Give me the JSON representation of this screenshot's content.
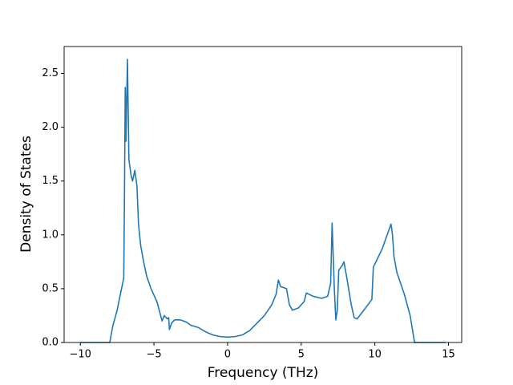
{
  "chart_data": {
    "type": "line",
    "xlabel": "Frequency (THz)",
    "ylabel": "Density of States",
    "xlim": [
      -11.1,
      15.9
    ],
    "ylim": [
      0,
      2.75
    ],
    "xticks": [
      {
        "value": -10,
        "label": "−10"
      },
      {
        "value": -5,
        "label": "−5"
      },
      0,
      5,
      10,
      15
    ],
    "yticks": [
      {
        "value": 0,
        "label": "0.0"
      },
      0.5,
      {
        "value": 1,
        "label": "1.0"
      },
      1.5,
      {
        "value": 2,
        "label": "2.0"
      },
      2.5
    ],
    "color": "#1f77b4",
    "x": [
      -10,
      -8,
      -7.8,
      -7.5,
      -7.2,
      -7.05,
      -7.0,
      -6.95,
      -6.9,
      -6.8,
      -6.7,
      -6.55,
      -6.45,
      -6.3,
      -6.15,
      -6.05,
      -5.9,
      -5.7,
      -5.5,
      -5.2,
      -4.8,
      -4.6,
      -4.45,
      -4.3,
      -4.1,
      -4.0,
      -3.95,
      -3.8,
      -3.6,
      -3.2,
      -2.8,
      -2.5,
      -2,
      -1.5,
      -1,
      -0.5,
      0,
      0.5,
      1,
      1.5,
      2,
      2.5,
      3,
      3.3,
      3.45,
      3.6,
      4,
      4.2,
      4.4,
      4.8,
      5.2,
      5.35,
      5.8,
      6.4,
      6.8,
      7.0,
      7.1,
      7.25,
      7.35,
      7.45,
      7.55,
      7.8,
      7.9,
      8.1,
      8.4,
      8.6,
      8.8,
      9.2,
      9.8,
      9.9,
      10.5,
      11.1,
      11.2,
      11.3,
      11.5,
      12,
      12.4,
      12.7,
      13,
      14.8
    ],
    "values": [
      0,
      0,
      0.15,
      0.3,
      0.5,
      0.6,
      1.4,
      2.37,
      1.87,
      2.63,
      1.7,
      1.55,
      1.5,
      1.6,
      1.45,
      1.1,
      0.9,
      0.75,
      0.62,
      0.5,
      0.38,
      0.28,
      0.2,
      0.25,
      0.22,
      0.23,
      0.12,
      0.18,
      0.21,
      0.21,
      0.19,
      0.16,
      0.14,
      0.1,
      0.07,
      0.055,
      0.05,
      0.055,
      0.07,
      0.11,
      0.18,
      0.25,
      0.35,
      0.45,
      0.58,
      0.52,
      0.5,
      0.35,
      0.3,
      0.32,
      0.38,
      0.46,
      0.43,
      0.41,
      0.43,
      0.55,
      1.11,
      0.5,
      0.21,
      0.3,
      0.67,
      0.72,
      0.75,
      0.6,
      0.35,
      0.23,
      0.22,
      0.29,
      0.4,
      0.7,
      0.87,
      1.1,
      1.0,
      0.8,
      0.65,
      0.45,
      0.25,
      0,
      0,
      0
    ]
  }
}
